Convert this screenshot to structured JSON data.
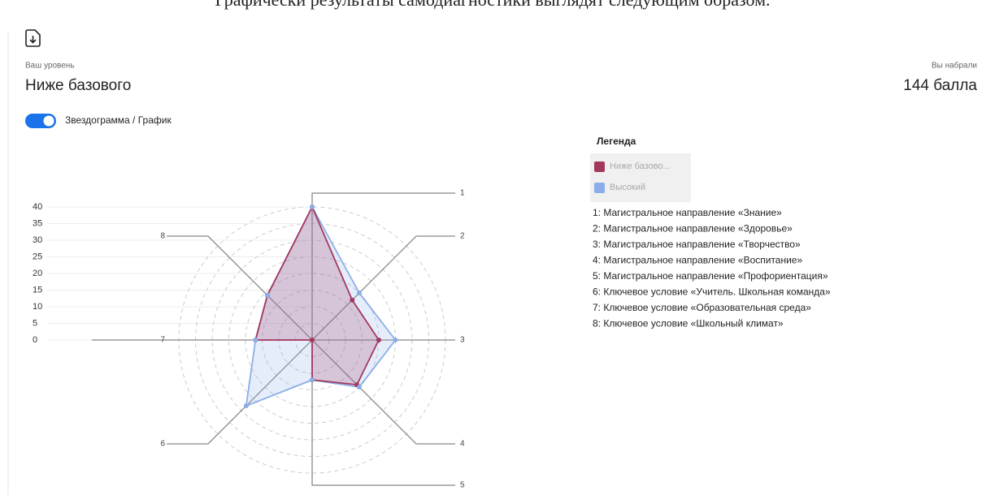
{
  "header": {
    "intro": "Графически результаты самодиагностики выглядят следующим образом.",
    "level_label": "Ваш уровень",
    "level": "Ниже базового",
    "score_label": "Вы набрали",
    "score": "144 балла"
  },
  "toggle": {
    "label": "Звездограмма / График"
  },
  "legend": {
    "title": "Легенда",
    "items": [
      "1: Магистральное направление «Знание»",
      "2: Магистральное направление «Здоровье»",
      "3: Магистральное направление «Творчество»",
      "4: Магистральное направление «Воспитание»",
      "5: Магистральное направление «Профориентация»",
      "6: Ключевое условие «Учитель. Школьная команда»",
      "7: Ключевое условие «Образовательная среда»",
      "8: Ключевое условие «Школьный климат»"
    ]
  },
  "chart_data": {
    "type": "radar",
    "categories": [
      "1",
      "2",
      "3",
      "4",
      "5",
      "6",
      "7",
      "8"
    ],
    "series": [
      {
        "name": "Ниже базово...",
        "color": "#a3385e",
        "values": [
          40,
          17,
          20,
          19,
          12,
          0,
          17,
          19
        ]
      },
      {
        "name": "Высокий",
        "color": "#8aaee8",
        "values": [
          40,
          20,
          25,
          20,
          12,
          28,
          17,
          19
        ]
      }
    ],
    "ylim": [
      0,
      40
    ],
    "yticks": [
      0,
      5,
      10,
      15,
      20,
      25,
      30,
      35,
      40
    ],
    "grid": true
  }
}
